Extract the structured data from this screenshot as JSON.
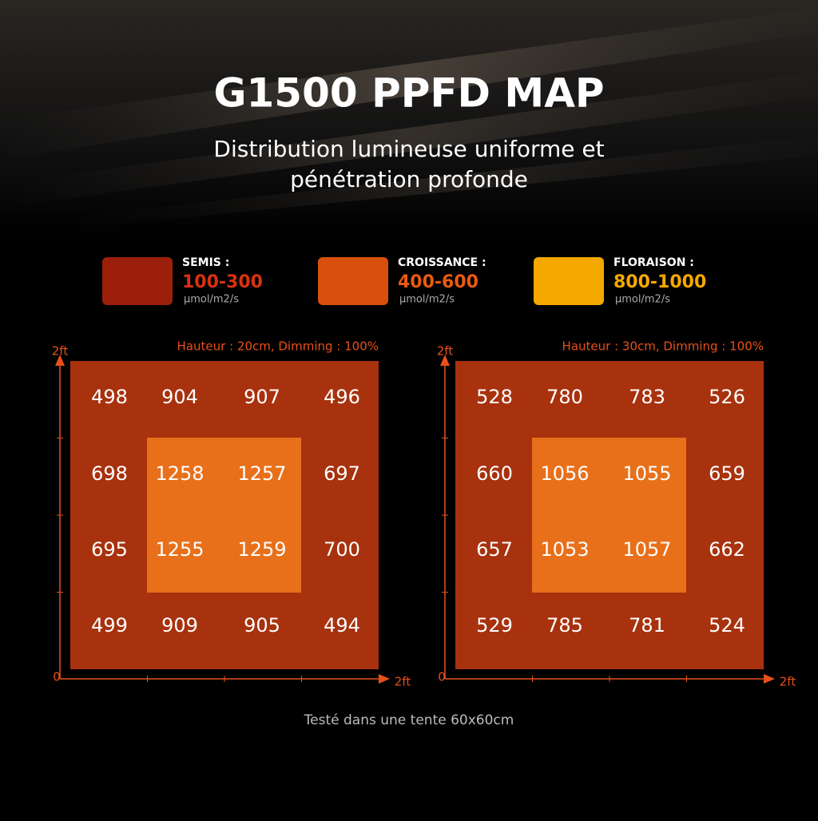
{
  "header": {
    "title": "G1500 PPFD MAP",
    "subtitle": [
      "Distribution lumineuse uniforme et",
      "pénétration profonde"
    ]
  },
  "legend": [
    {
      "label": "SEMIS :",
      "range": "100-300",
      "unit": "μmol/m2/s",
      "color": "#9b1f0a",
      "text_color": "#d8320f"
    },
    {
      "label": "CROISSANCE :",
      "range": "400-600",
      "unit": "μmol/m2/s",
      "color": "#d9500e",
      "text_color": "#e85a10"
    },
    {
      "label": "FLORAISON :",
      "range": "800-1000",
      "unit": "μmol/m2/s",
      "color": "#f5a800",
      "text_color": "#f5a800"
    }
  ],
  "maps": [
    {
      "caption": "Hauteur : 20cm, Dimming : 100%",
      "y_label": "2ft",
      "origin": "0",
      "x_label": "2ft",
      "rows": [
        [
          498,
          904,
          907,
          496
        ],
        [
          698,
          1258,
          1257,
          697
        ],
        [
          695,
          1255,
          1259,
          700
        ],
        [
          499,
          909,
          905,
          494
        ]
      ]
    },
    {
      "caption": "Hauteur : 30cm, Dimming : 100%",
      "y_label": "2ft",
      "origin": "0",
      "x_label": "2ft",
      "rows": [
        [
          528,
          780,
          783,
          526
        ],
        [
          660,
          1056,
          1055,
          659
        ],
        [
          657,
          1053,
          1057,
          662
        ],
        [
          529,
          785,
          781,
          524
        ]
      ]
    }
  ],
  "footer": "Testé dans une tente 60x60cm"
}
